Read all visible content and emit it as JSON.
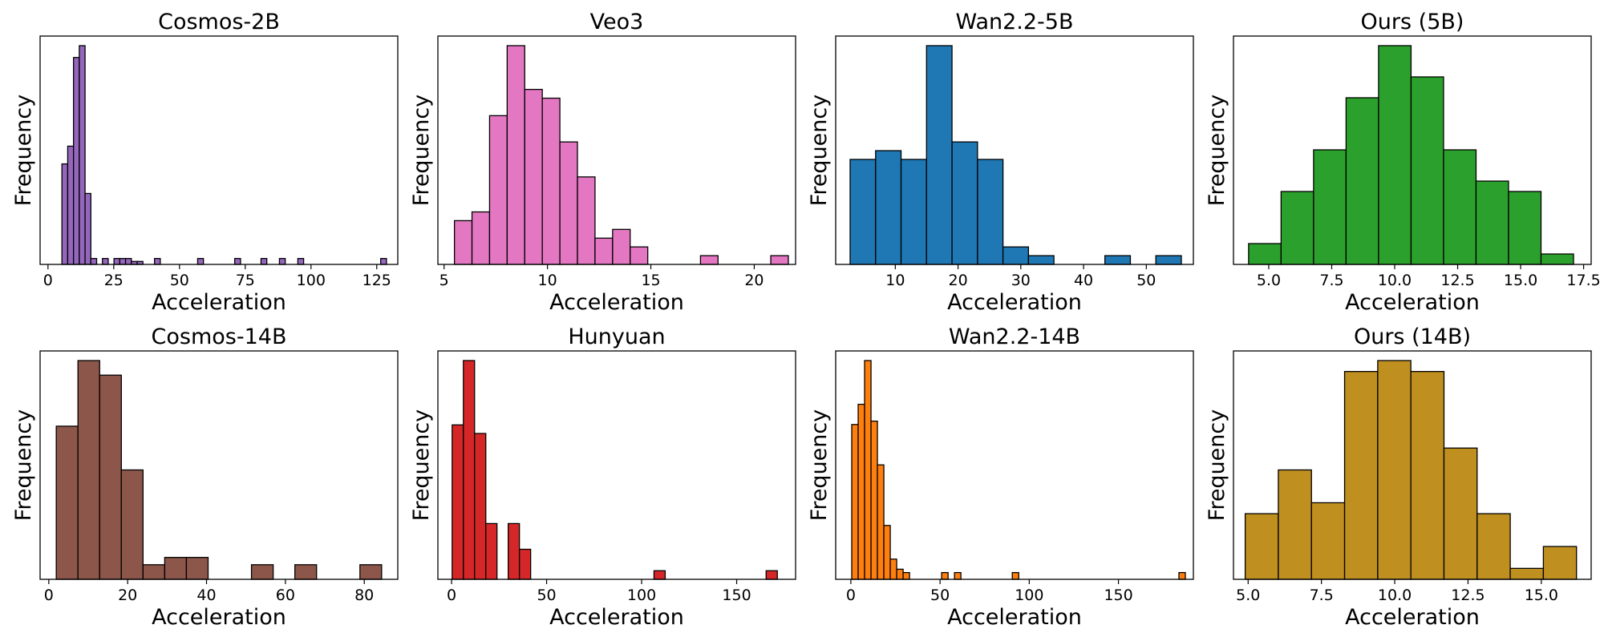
{
  "figure": {
    "xlabel": "Acceleration",
    "ylabel": "Frequency"
  },
  "chart_data": [
    {
      "type": "histogram",
      "title": "Cosmos-2B",
      "color": "#9467bd",
      "xlim": [
        -3,
        133
      ],
      "xticks": [
        0,
        25,
        50,
        75,
        100,
        125
      ],
      "xtick_labels": [
        "0",
        "25",
        "50",
        "75",
        "100",
        "125"
      ],
      "bin_width": 2.2,
      "bins": [
        [
          5.3,
          34
        ],
        [
          7.5,
          40
        ],
        [
          9.7,
          70
        ],
        [
          11.9,
          74
        ],
        [
          14.1,
          24
        ],
        [
          16.3,
          2
        ],
        [
          20.7,
          2
        ],
        [
          25.1,
          2
        ],
        [
          27.3,
          2
        ],
        [
          29.5,
          2
        ],
        [
          31.7,
          1
        ],
        [
          33.9,
          1
        ],
        [
          40.5,
          2
        ],
        [
          56.9,
          2
        ],
        [
          71.0,
          2
        ],
        [
          81.0,
          2
        ],
        [
          88.0,
          2
        ],
        [
          95.0,
          2
        ],
        [
          126.5,
          2
        ]
      ]
    },
    {
      "type": "histogram",
      "title": "Veo3",
      "color": "#e377c2",
      "xlim": [
        4.7,
        22.0
      ],
      "xticks": [
        5,
        10,
        15,
        20
      ],
      "xtick_labels": [
        "5",
        "10",
        "15",
        "20"
      ],
      "bin_width": 0.85,
      "bins": [
        [
          5.5,
          5
        ],
        [
          6.35,
          6
        ],
        [
          7.2,
          17
        ],
        [
          8.05,
          25
        ],
        [
          8.9,
          20
        ],
        [
          9.75,
          19
        ],
        [
          10.6,
          14
        ],
        [
          11.45,
          10
        ],
        [
          12.3,
          3
        ],
        [
          13.15,
          4
        ],
        [
          14.0,
          2
        ],
        [
          17.4,
          1
        ],
        [
          20.8,
          1
        ]
      ]
    },
    {
      "type": "histogram",
      "title": "Wan2.2-5B",
      "color": "#1f77b4",
      "xlim": [
        0.5,
        57.5
      ],
      "xticks": [
        10,
        20,
        30,
        40,
        50
      ],
      "xtick_labels": [
        "10",
        "20",
        "30",
        "40",
        "50"
      ],
      "bin_width": 4.06,
      "bins": [
        [
          2.8,
          12
        ],
        [
          6.86,
          13
        ],
        [
          10.92,
          12
        ],
        [
          14.98,
          25
        ],
        [
          19.04,
          14
        ],
        [
          23.1,
          12
        ],
        [
          27.16,
          2
        ],
        [
          31.22,
          1
        ],
        [
          43.4,
          1
        ],
        [
          51.52,
          1
        ]
      ]
    },
    {
      "type": "histogram",
      "title": "Ours (5B)",
      "color": "#2ca02c",
      "xlim": [
        3.6,
        17.8
      ],
      "xticks": [
        5.0,
        7.5,
        10.0,
        12.5,
        15.0,
        17.5
      ],
      "xtick_labels": [
        "5.0",
        "7.5",
        "10.0",
        "12.5",
        "15.0",
        "17.5"
      ],
      "bin_width": 1.29,
      "bins": [
        [
          4.2,
          2
        ],
        [
          5.49,
          7
        ],
        [
          6.78,
          11
        ],
        [
          8.07,
          16
        ],
        [
          9.36,
          21
        ],
        [
          10.65,
          18
        ],
        [
          11.94,
          11
        ],
        [
          13.23,
          8
        ],
        [
          14.52,
          7
        ],
        [
          15.81,
          1
        ]
      ]
    },
    {
      "type": "histogram",
      "title": "Cosmos-14B",
      "color": "#8c564b",
      "xlim": [
        -2.2,
        88.5
      ],
      "xticks": [
        0,
        20,
        40,
        60,
        80
      ],
      "xtick_labels": [
        "0",
        "20",
        "40",
        "60",
        "80"
      ],
      "bin_width": 5.5,
      "bins": [
        [
          1.9,
          21
        ],
        [
          7.4,
          30
        ],
        [
          12.9,
          28
        ],
        [
          18.4,
          15
        ],
        [
          23.9,
          2
        ],
        [
          29.4,
          3
        ],
        [
          34.9,
          3
        ],
        [
          51.4,
          2
        ],
        [
          62.4,
          2
        ],
        [
          78.9,
          2
        ]
      ]
    },
    {
      "type": "histogram",
      "title": "Hunyuan",
      "color": "#d62728",
      "xlim": [
        -7.2,
        181
      ],
      "xticks": [
        0,
        50,
        100,
        150
      ],
      "xtick_labels": [
        "0",
        "50",
        "100",
        "150"
      ],
      "bin_width": 5.9,
      "bins": [
        [
          0.3,
          36
        ],
        [
          6.2,
          51
        ],
        [
          12.1,
          34
        ],
        [
          18.0,
          13
        ],
        [
          29.8,
          13
        ],
        [
          35.7,
          7
        ],
        [
          106.5,
          2
        ],
        [
          165.5,
          2
        ]
      ]
    },
    {
      "type": "histogram",
      "title": "Wan2.2-14B",
      "color": "#ff7f0e",
      "xlim": [
        -8.5,
        192
      ],
      "xticks": [
        0,
        50,
        100,
        150
      ],
      "xtick_labels": [
        "0",
        "50",
        "100",
        "150"
      ],
      "bin_width": 3.6,
      "bins": [
        [
          0.5,
          46
        ],
        [
          4.1,
          52
        ],
        [
          7.7,
          65
        ],
        [
          11.3,
          47
        ],
        [
          14.9,
          34
        ],
        [
          18.5,
          16
        ],
        [
          22.1,
          6
        ],
        [
          25.7,
          3
        ],
        [
          29.3,
          2
        ],
        [
          50.9,
          2
        ],
        [
          58.1,
          2
        ],
        [
          90.5,
          2
        ],
        [
          183.9,
          2
        ]
      ]
    },
    {
      "type": "histogram",
      "title": "Ours (14B)",
      "color": "#bf9020",
      "xlim": [
        4.5,
        16.7
      ],
      "xticks": [
        5.0,
        7.5,
        10.0,
        12.5,
        15.0
      ],
      "xtick_labels": [
        "5.0",
        "7.5",
        "10.0",
        "12.5",
        "15.0"
      ],
      "bin_width": 1.13,
      "bins": [
        [
          4.9,
          6
        ],
        [
          6.03,
          10
        ],
        [
          7.16,
          7
        ],
        [
          8.29,
          19
        ],
        [
          9.42,
          20
        ],
        [
          10.55,
          19
        ],
        [
          11.68,
          12
        ],
        [
          12.81,
          6
        ],
        [
          13.94,
          1
        ],
        [
          15.07,
          3
        ]
      ]
    }
  ]
}
